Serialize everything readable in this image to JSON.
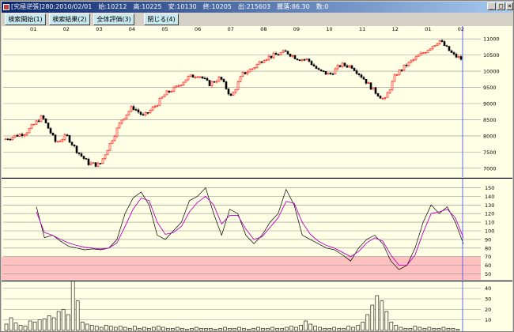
{
  "window": {
    "title": "[究極逆張]280:2010/02/01　始:10212　高:10225　安:10130　終:10205　出:215603　騰落:86.30　数:0",
    "min_label": "_",
    "max_label": "□",
    "close_label": "×"
  },
  "toolbar": {
    "buttons": [
      "検索開始(1)",
      "検索結果(2)",
      "全体評価(3)",
      "閉じる(4)"
    ]
  },
  "colors": {
    "background": "#ffffe6",
    "candle_up": "#ff0000",
    "candle_down": "#000000",
    "osc_line": "#000000",
    "osc_signal": "#c000c0",
    "oversold_band": "#ffc0c0",
    "cursor": "#4040ff",
    "volume": "#000000"
  },
  "chart_data": [
    {
      "type": "candlestick",
      "name": "price",
      "x_labels": [
        "01",
        "02",
        "03",
        "04",
        "05",
        "06",
        "07",
        "08",
        "09",
        "10",
        "11",
        "12",
        "01",
        "02"
      ],
      "y_ticks": [
        7000,
        7500,
        8000,
        8500,
        9000,
        9500,
        10000,
        10500,
        11000
      ],
      "ylim": [
        6800,
        11200
      ],
      "grid": true,
      "monthly_path": [
        [
          "01",
          8100,
          8600
        ],
        [
          "02",
          7800,
          8000,
          7500
        ],
        [
          "03",
          7150,
          7100,
          7800
        ],
        [
          "04",
          8500,
          8900,
          8600
        ],
        [
          "05",
          8900,
          9300,
          9500
        ],
        [
          "06",
          9800,
          9900,
          9600
        ],
        [
          "07",
          9800,
          9200,
          9900
        ],
        [
          "08",
          10100,
          10400,
          10500
        ],
        [
          "09",
          10600,
          10400,
          10350
        ],
        [
          "10",
          10000,
          9900,
          10200
        ],
        [
          "11",
          10150,
          9800,
          9400
        ],
        [
          "12",
          9100,
          9900,
          10200
        ],
        [
          "01",
          10450,
          10700,
          10950
        ],
        [
          "02",
          10500,
          10250
        ]
      ]
    },
    {
      "type": "line",
      "name": "oscillator",
      "y_ticks": [
        50,
        60,
        70,
        80,
        90,
        100,
        110,
        120,
        130,
        140,
        150
      ],
      "ylim": [
        45,
        155
      ],
      "band": [
        45,
        70
      ],
      "series": [
        {
          "values": [
            128,
            92,
            95,
            88,
            82,
            80,
            78,
            79,
            78,
            80,
            90,
            120,
            138,
            145,
            130,
            95,
            90,
            100,
            110,
            135,
            140,
            150,
            120,
            95,
            125,
            120,
            95,
            85,
            95,
            110,
            120,
            148,
            130,
            95,
            90,
            85,
            80,
            78,
            72,
            65,
            80,
            90,
            95,
            85,
            65,
            55,
            60,
            80,
            110,
            130,
            120,
            128,
            110,
            85
          ]
        },
        {
          "values": [
            122,
            98,
            95,
            90,
            86,
            83,
            81,
            80,
            79,
            80,
            86,
            105,
            125,
            138,
            135,
            110,
            96,
            98,
            105,
            122,
            133,
            140,
            130,
            108,
            118,
            118,
            102,
            90,
            93,
            104,
            115,
            134,
            132,
            110,
            96,
            88,
            83,
            80,
            75,
            70,
            76,
            86,
            92,
            88,
            72,
            60,
            60,
            72,
            98,
            120,
            122,
            125,
            115,
            92
          ]
        }
      ]
    },
    {
      "type": "bar",
      "name": "volume",
      "y_ticks": [
        10,
        20,
        30,
        40
      ],
      "ylim": [
        0,
        45
      ],
      "values": [
        6,
        12,
        7,
        5,
        4,
        9,
        8,
        10,
        11,
        14,
        12,
        18,
        20,
        15,
        47,
        28,
        8,
        6,
        5,
        4,
        3,
        5,
        4,
        3,
        4,
        3,
        2,
        4,
        2,
        3,
        2,
        3,
        4,
        3,
        2,
        2,
        3,
        2,
        1,
        2,
        3,
        2,
        2,
        2,
        1,
        2,
        3,
        2,
        2,
        3,
        2,
        1,
        2,
        3,
        2,
        2,
        3,
        2,
        2,
        3,
        4,
        3,
        5,
        9,
        6,
        4,
        3,
        2,
        2,
        3,
        2,
        2,
        4,
        3,
        5,
        8,
        15,
        24,
        33,
        28,
        18,
        8,
        5,
        3,
        2,
        2,
        4,
        3,
        2,
        3,
        2,
        2,
        3,
        2,
        2,
        1
      ]
    }
  ]
}
